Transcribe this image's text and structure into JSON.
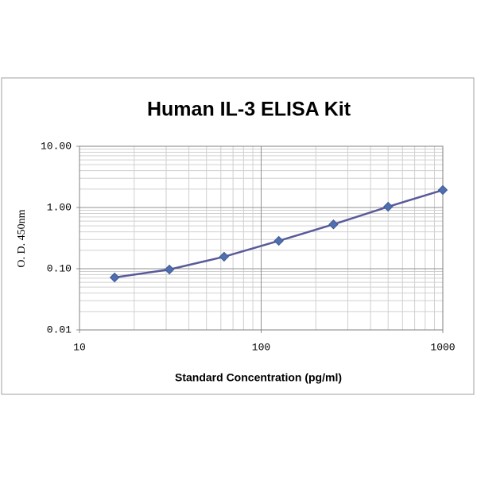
{
  "chart_data": {
    "type": "line",
    "title": "Human IL-3 ELISA Kit",
    "x_label": "Standard Concentration (pg/ml)",
    "y_label": "O. D.  450nm",
    "x": [
      15.6,
      31.25,
      62.5,
      125,
      250,
      500,
      1000
    ],
    "series": [
      {
        "color": "#5a5a9a",
        "marker_color": "#4f6fb0",
        "values": [
          0.072,
          0.097,
          0.157,
          0.285,
          0.53,
          1.03,
          1.93
        ]
      }
    ],
    "xlim": [
      10,
      1000
    ],
    "ylim": [
      0.01,
      10
    ],
    "xticks": [
      10,
      100,
      1000
    ],
    "yticks": [
      {
        "value": 0.01,
        "label": "0.01"
      },
      {
        "value": 0.1,
        "label": "0.10"
      },
      {
        "value": 1,
        "label": "1.00"
      },
      {
        "value": 10,
        "label": "10.00"
      }
    ],
    "xscale": "log",
    "yscale": "log",
    "grid": true,
    "minor_grid": true
  }
}
